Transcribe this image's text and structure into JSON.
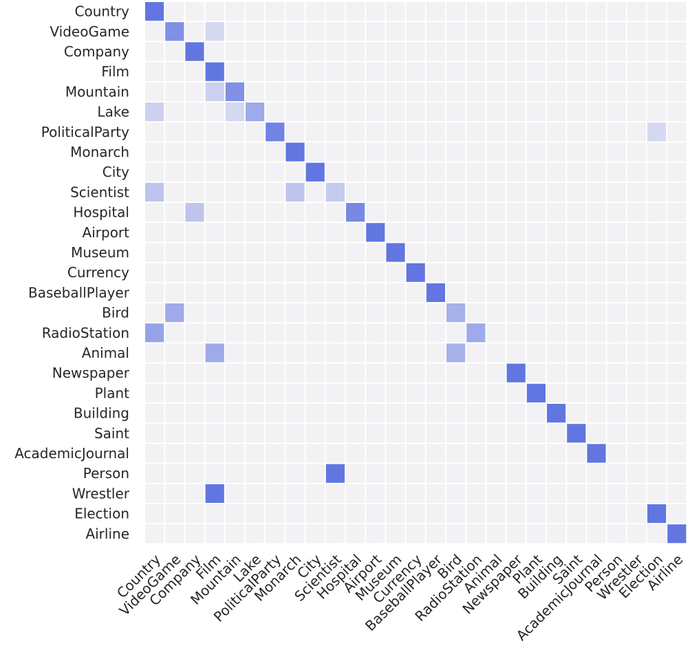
{
  "chart_data": {
    "type": "heatmap",
    "title": "",
    "xlabel": "",
    "ylabel": "",
    "rows": [
      "Country",
      "VideoGame",
      "Company",
      "Film",
      "Mountain",
      "Lake",
      "PoliticalParty",
      "Monarch",
      "City",
      "Scientist",
      "Hospital",
      "Airport",
      "Museum",
      "Currency",
      "BaseballPlayer",
      "Bird",
      "RadioStation",
      "Animal",
      "Newspaper",
      "Plant",
      "Building",
      "Saint",
      "AcademicJournal",
      "Person",
      "Wrestler",
      "Election",
      "Airline"
    ],
    "columns": [
      "Country",
      "VideoGame",
      "Company",
      "Film",
      "Mountain",
      "Lake",
      "PoliticalParty",
      "Monarch",
      "City",
      "Scientist",
      "Hospital",
      "Airport",
      "Museum",
      "Currency",
      "BaseballPlayer",
      "Bird",
      "RadioStation",
      "Animal",
      "Newspaper",
      "Plant",
      "Building",
      "Saint",
      "AcademicJournal",
      "Person",
      "Wrestler",
      "Election",
      "Airline"
    ],
    "value_range": [
      0,
      1
    ],
    "colors": {
      "low": "#f2f2f4",
      "high": "#5a6fe0",
      "grid": "#ffffff"
    },
    "cells": [
      {
        "row": "Country",
        "col": "Country",
        "value": 0.95
      },
      {
        "row": "VideoGame",
        "col": "VideoGame",
        "value": 0.75
      },
      {
        "row": "VideoGame",
        "col": "Film",
        "value": 0.2
      },
      {
        "row": "Company",
        "col": "Company",
        "value": 0.95
      },
      {
        "row": "Film",
        "col": "Film",
        "value": 0.95
      },
      {
        "row": "Mountain",
        "col": "Film",
        "value": 0.25
      },
      {
        "row": "Mountain",
        "col": "Mountain",
        "value": 0.75
      },
      {
        "row": "Lake",
        "col": "Country",
        "value": 0.25
      },
      {
        "row": "Lake",
        "col": "Mountain",
        "value": 0.2
      },
      {
        "row": "Lake",
        "col": "Lake",
        "value": 0.55
      },
      {
        "row": "PoliticalParty",
        "col": "PoliticalParty",
        "value": 0.85
      },
      {
        "row": "PoliticalParty",
        "col": "Election",
        "value": 0.2
      },
      {
        "row": "Monarch",
        "col": "Monarch",
        "value": 0.95
      },
      {
        "row": "City",
        "col": "City",
        "value": 0.95
      },
      {
        "row": "Scientist",
        "col": "Country",
        "value": 0.35
      },
      {
        "row": "Scientist",
        "col": "Monarch",
        "value": 0.35
      },
      {
        "row": "Scientist",
        "col": "Scientist",
        "value": 0.3
      },
      {
        "row": "Hospital",
        "col": "Company",
        "value": 0.35
      },
      {
        "row": "Hospital",
        "col": "Hospital",
        "value": 0.8
      },
      {
        "row": "Airport",
        "col": "Airport",
        "value": 0.95
      },
      {
        "row": "Museum",
        "col": "Museum",
        "value": 0.95
      },
      {
        "row": "Currency",
        "col": "Currency",
        "value": 0.95
      },
      {
        "row": "BaseballPlayer",
        "col": "BaseballPlayer",
        "value": 0.95
      },
      {
        "row": "Bird",
        "col": "VideoGame",
        "value": 0.55
      },
      {
        "row": "Bird",
        "col": "Bird",
        "value": 0.5
      },
      {
        "row": "RadioStation",
        "col": "Country",
        "value": 0.6
      },
      {
        "row": "RadioStation",
        "col": "RadioStation",
        "value": 0.55
      },
      {
        "row": "Animal",
        "col": "Film",
        "value": 0.55
      },
      {
        "row": "Animal",
        "col": "Bird",
        "value": 0.5
      },
      {
        "row": "Newspaper",
        "col": "Newspaper",
        "value": 0.95
      },
      {
        "row": "Plant",
        "col": "Plant",
        "value": 0.95
      },
      {
        "row": "Building",
        "col": "Building",
        "value": 0.95
      },
      {
        "row": "Saint",
        "col": "Saint",
        "value": 0.95
      },
      {
        "row": "AcademicJournal",
        "col": "AcademicJournal",
        "value": 0.95
      },
      {
        "row": "Person",
        "col": "Scientist",
        "value": 0.95
      },
      {
        "row": "Wrestler",
        "col": "Film",
        "value": 0.95
      },
      {
        "row": "Election",
        "col": "Election",
        "value": 0.95
      },
      {
        "row": "Airline",
        "col": "Airline",
        "value": 0.95
      }
    ]
  }
}
